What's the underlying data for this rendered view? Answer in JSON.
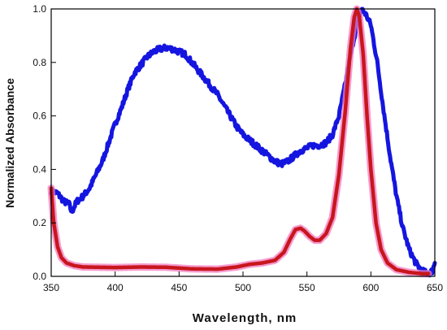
{
  "chart_data": {
    "type": "line",
    "xlabel": "Wavelength, nm",
    "ylabel": "Normalized Absorbance",
    "xlim": [
      350,
      650
    ],
    "ylim": [
      0,
      1.0
    ],
    "x_ticks": [
      "350",
      "400",
      "450",
      "500",
      "550",
      "600",
      "650"
    ],
    "y_ticks": [
      "0.0",
      "0.2",
      "0.4",
      "0.6",
      "0.8",
      "1.0"
    ],
    "grid": false,
    "series": [
      {
        "color": "#1515e0",
        "noisy": true,
        "points": [
          [
            350,
            0.32
          ],
          [
            355,
            0.31
          ],
          [
            360,
            0.28
          ],
          [
            364,
            0.27
          ],
          [
            366,
            0.24
          ],
          [
            370,
            0.28
          ],
          [
            375,
            0.3
          ],
          [
            380,
            0.33
          ],
          [
            385,
            0.38
          ],
          [
            390,
            0.43
          ],
          [
            395,
            0.5
          ],
          [
            400,
            0.57
          ],
          [
            405,
            0.63
          ],
          [
            410,
            0.7
          ],
          [
            415,
            0.76
          ],
          [
            420,
            0.79
          ],
          [
            425,
            0.82
          ],
          [
            430,
            0.84
          ],
          [
            435,
            0.85
          ],
          [
            440,
            0.855
          ],
          [
            445,
            0.85
          ],
          [
            450,
            0.84
          ],
          [
            455,
            0.83
          ],
          [
            460,
            0.8
          ],
          [
            465,
            0.77
          ],
          [
            470,
            0.74
          ],
          [
            475,
            0.71
          ],
          [
            480,
            0.68
          ],
          [
            485,
            0.64
          ],
          [
            490,
            0.6
          ],
          [
            495,
            0.56
          ],
          [
            500,
            0.53
          ],
          [
            505,
            0.51
          ],
          [
            510,
            0.49
          ],
          [
            515,
            0.47
          ],
          [
            520,
            0.45
          ],
          [
            525,
            0.43
          ],
          [
            530,
            0.42
          ],
          [
            535,
            0.43
          ],
          [
            540,
            0.45
          ],
          [
            545,
            0.47
          ],
          [
            550,
            0.48
          ],
          [
            555,
            0.49
          ],
          [
            560,
            0.49
          ],
          [
            565,
            0.5
          ],
          [
            570,
            0.53
          ],
          [
            575,
            0.6
          ],
          [
            580,
            0.72
          ],
          [
            585,
            0.85
          ],
          [
            590,
            0.96
          ],
          [
            593,
            1.0
          ],
          [
            596,
            0.98
          ],
          [
            600,
            0.94
          ],
          [
            605,
            0.8
          ],
          [
            610,
            0.62
          ],
          [
            615,
            0.45
          ],
          [
            620,
            0.3
          ],
          [
            625,
            0.18
          ],
          [
            630,
            0.1
          ],
          [
            635,
            0.05
          ],
          [
            640,
            0.02
          ],
          [
            645,
            0.01
          ],
          [
            648,
            0.02
          ],
          [
            650,
            0.05
          ]
        ]
      },
      {
        "color": "#c8161d",
        "halo_color": "#f27bc0",
        "noisy": false,
        "points": [
          [
            350,
            0.33
          ],
          [
            352,
            0.2
          ],
          [
            355,
            0.11
          ],
          [
            358,
            0.07
          ],
          [
            362,
            0.05
          ],
          [
            368,
            0.04
          ],
          [
            375,
            0.035
          ],
          [
            400,
            0.033
          ],
          [
            420,
            0.035
          ],
          [
            440,
            0.034
          ],
          [
            460,
            0.028
          ],
          [
            480,
            0.027
          ],
          [
            495,
            0.035
          ],
          [
            505,
            0.045
          ],
          [
            515,
            0.05
          ],
          [
            525,
            0.06
          ],
          [
            532,
            0.09
          ],
          [
            537,
            0.14
          ],
          [
            541,
            0.175
          ],
          [
            545,
            0.18
          ],
          [
            548,
            0.17
          ],
          [
            552,
            0.15
          ],
          [
            556,
            0.135
          ],
          [
            560,
            0.135
          ],
          [
            565,
            0.16
          ],
          [
            570,
            0.22
          ],
          [
            575,
            0.38
          ],
          [
            580,
            0.62
          ],
          [
            584,
            0.85
          ],
          [
            587,
            0.97
          ],
          [
            589,
            1.0
          ],
          [
            591,
            0.97
          ],
          [
            594,
            0.83
          ],
          [
            597,
            0.6
          ],
          [
            600,
            0.4
          ],
          [
            604,
            0.2
          ],
          [
            608,
            0.1
          ],
          [
            613,
            0.05
          ],
          [
            620,
            0.025
          ],
          [
            630,
            0.015
          ],
          [
            640,
            0.01
          ],
          [
            645,
            0.01
          ]
        ]
      }
    ]
  }
}
